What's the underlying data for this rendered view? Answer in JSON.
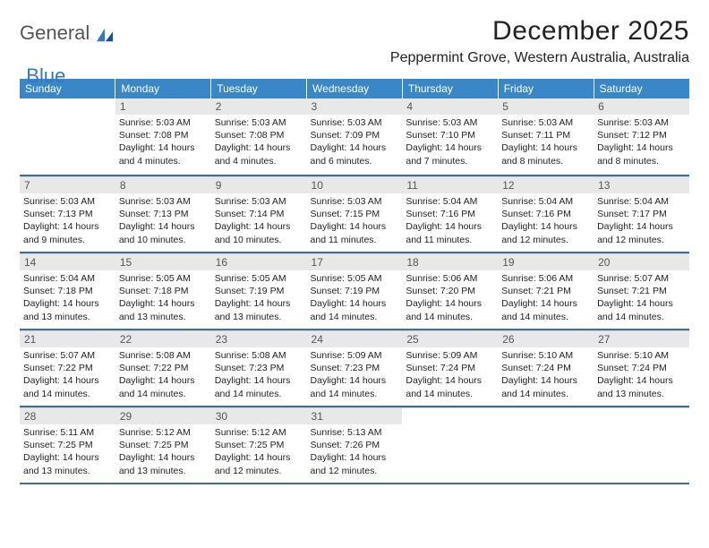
{
  "logo": {
    "word1": "General",
    "word2": "Blue"
  },
  "colors": {
    "header_bg": "#3a87c8",
    "header_fg": "#ffffff",
    "daynum_bg": "#e8e8e8",
    "rule": "#3a6ea0",
    "logo_gray": "#555555",
    "logo_blue": "#2f78c2"
  },
  "title": "December 2025",
  "location": "Peppermint Grove, Western Australia, Australia",
  "weekdays": [
    "Sunday",
    "Monday",
    "Tuesday",
    "Wednesday",
    "Thursday",
    "Friday",
    "Saturday"
  ],
  "weeks": [
    [
      null,
      {
        "n": "1",
        "sr": "5:03 AM",
        "ss": "7:08 PM",
        "dl": "14 hours and 4 minutes."
      },
      {
        "n": "2",
        "sr": "5:03 AM",
        "ss": "7:08 PM",
        "dl": "14 hours and 4 minutes."
      },
      {
        "n": "3",
        "sr": "5:03 AM",
        "ss": "7:09 PM",
        "dl": "14 hours and 6 minutes."
      },
      {
        "n": "4",
        "sr": "5:03 AM",
        "ss": "7:10 PM",
        "dl": "14 hours and 7 minutes."
      },
      {
        "n": "5",
        "sr": "5:03 AM",
        "ss": "7:11 PM",
        "dl": "14 hours and 8 minutes."
      },
      {
        "n": "6",
        "sr": "5:03 AM",
        "ss": "7:12 PM",
        "dl": "14 hours and 8 minutes."
      }
    ],
    [
      {
        "n": "7",
        "sr": "5:03 AM",
        "ss": "7:13 PM",
        "dl": "14 hours and 9 minutes."
      },
      {
        "n": "8",
        "sr": "5:03 AM",
        "ss": "7:13 PM",
        "dl": "14 hours and 10 minutes."
      },
      {
        "n": "9",
        "sr": "5:03 AM",
        "ss": "7:14 PM",
        "dl": "14 hours and 10 minutes."
      },
      {
        "n": "10",
        "sr": "5:03 AM",
        "ss": "7:15 PM",
        "dl": "14 hours and 11 minutes."
      },
      {
        "n": "11",
        "sr": "5:04 AM",
        "ss": "7:16 PM",
        "dl": "14 hours and 11 minutes."
      },
      {
        "n": "12",
        "sr": "5:04 AM",
        "ss": "7:16 PM",
        "dl": "14 hours and 12 minutes."
      },
      {
        "n": "13",
        "sr": "5:04 AM",
        "ss": "7:17 PM",
        "dl": "14 hours and 12 minutes."
      }
    ],
    [
      {
        "n": "14",
        "sr": "5:04 AM",
        "ss": "7:18 PM",
        "dl": "14 hours and 13 minutes."
      },
      {
        "n": "15",
        "sr": "5:05 AM",
        "ss": "7:18 PM",
        "dl": "14 hours and 13 minutes."
      },
      {
        "n": "16",
        "sr": "5:05 AM",
        "ss": "7:19 PM",
        "dl": "14 hours and 13 minutes."
      },
      {
        "n": "17",
        "sr": "5:05 AM",
        "ss": "7:19 PM",
        "dl": "14 hours and 14 minutes."
      },
      {
        "n": "18",
        "sr": "5:06 AM",
        "ss": "7:20 PM",
        "dl": "14 hours and 14 minutes."
      },
      {
        "n": "19",
        "sr": "5:06 AM",
        "ss": "7:21 PM",
        "dl": "14 hours and 14 minutes."
      },
      {
        "n": "20",
        "sr": "5:07 AM",
        "ss": "7:21 PM",
        "dl": "14 hours and 14 minutes."
      }
    ],
    [
      {
        "n": "21",
        "sr": "5:07 AM",
        "ss": "7:22 PM",
        "dl": "14 hours and 14 minutes."
      },
      {
        "n": "22",
        "sr": "5:08 AM",
        "ss": "7:22 PM",
        "dl": "14 hours and 14 minutes."
      },
      {
        "n": "23",
        "sr": "5:08 AM",
        "ss": "7:23 PM",
        "dl": "14 hours and 14 minutes."
      },
      {
        "n": "24",
        "sr": "5:09 AM",
        "ss": "7:23 PM",
        "dl": "14 hours and 14 minutes."
      },
      {
        "n": "25",
        "sr": "5:09 AM",
        "ss": "7:24 PM",
        "dl": "14 hours and 14 minutes."
      },
      {
        "n": "26",
        "sr": "5:10 AM",
        "ss": "7:24 PM",
        "dl": "14 hours and 14 minutes."
      },
      {
        "n": "27",
        "sr": "5:10 AM",
        "ss": "7:24 PM",
        "dl": "14 hours and 13 minutes."
      }
    ],
    [
      {
        "n": "28",
        "sr": "5:11 AM",
        "ss": "7:25 PM",
        "dl": "14 hours and 13 minutes."
      },
      {
        "n": "29",
        "sr": "5:12 AM",
        "ss": "7:25 PM",
        "dl": "14 hours and 13 minutes."
      },
      {
        "n": "30",
        "sr": "5:12 AM",
        "ss": "7:25 PM",
        "dl": "14 hours and 12 minutes."
      },
      {
        "n": "31",
        "sr": "5:13 AM",
        "ss": "7:26 PM",
        "dl": "14 hours and 12 minutes."
      },
      null,
      null,
      null
    ]
  ],
  "labels": {
    "sunrise": "Sunrise:",
    "sunset": "Sunset:",
    "daylight": "Daylight:"
  }
}
